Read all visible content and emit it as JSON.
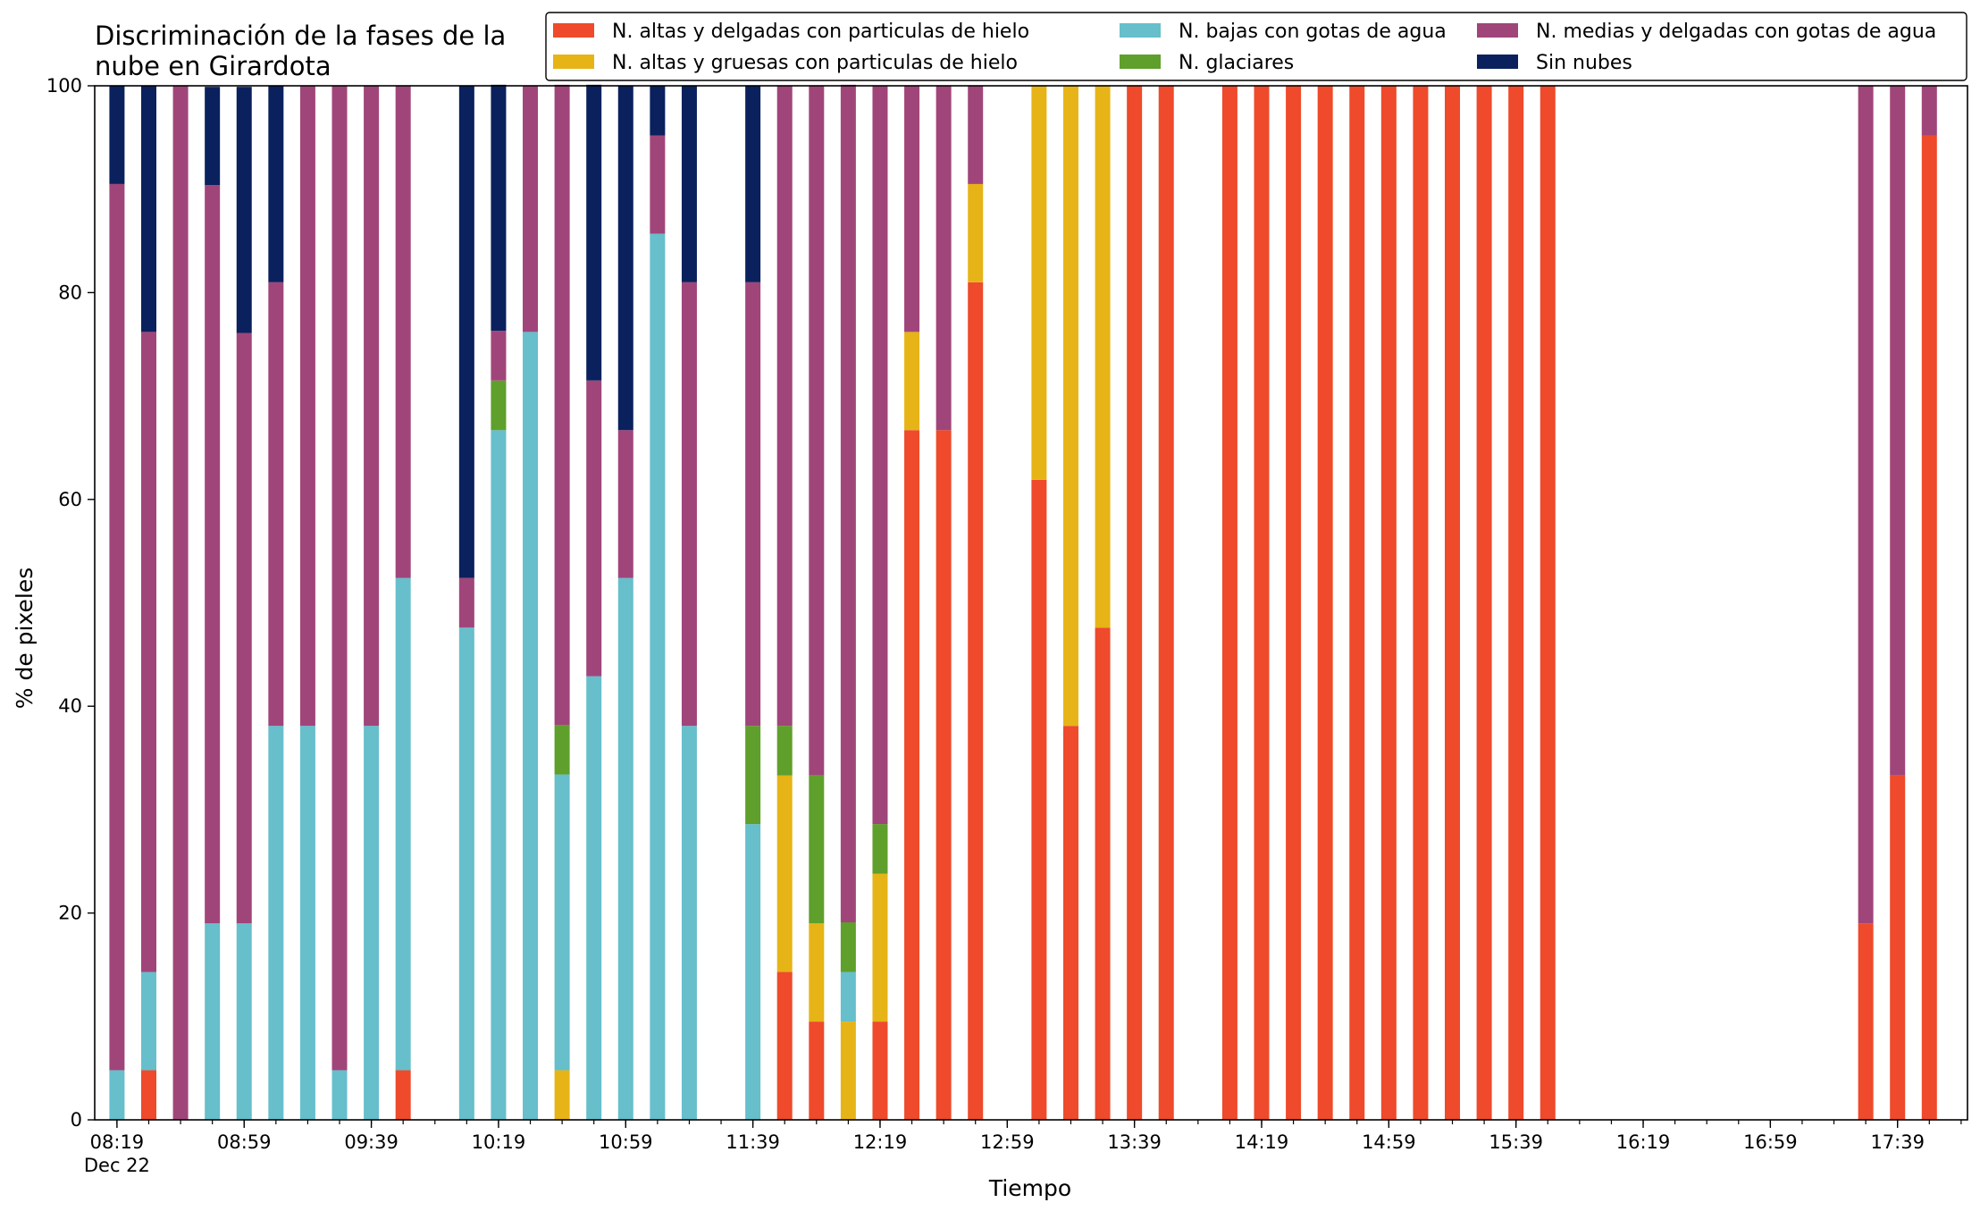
{
  "chart_data": {
    "type": "bar",
    "stacked": true,
    "title": [
      "Discriminación de la fases de la",
      "nube en Girardota"
    ],
    "xlabel": "Tiempo",
    "ylabel": "% de pixeles",
    "ylim": [
      0,
      100
    ],
    "yticks": [
      0,
      20,
      40,
      60,
      80,
      100
    ],
    "xlim_minutes_from_0819": [
      -7,
      582
    ],
    "xtick_labels": [
      {
        "label": "08:19",
        "sublabel": "Dec 22",
        "minutes": 0
      },
      {
        "label": "08:59",
        "minutes": 40
      },
      {
        "label": "09:39",
        "minutes": 80
      },
      {
        "label": "10:19",
        "minutes": 120
      },
      {
        "label": "10:59",
        "minutes": 160
      },
      {
        "label": "11:39",
        "minutes": 200
      },
      {
        "label": "12:19",
        "minutes": 240
      },
      {
        "label": "12:59",
        "minutes": 280
      },
      {
        "label": "13:39",
        "minutes": 320
      },
      {
        "label": "14:19",
        "minutes": 360
      },
      {
        "label": "14:59",
        "minutes": 400
      },
      {
        "label": "15:39",
        "minutes": 440
      },
      {
        "label": "16:19",
        "minutes": 480
      },
      {
        "label": "16:59",
        "minutes": 520
      },
      {
        "label": "17:39",
        "minutes": 560
      }
    ],
    "minor_tick_step_minutes": 10,
    "grid": false,
    "legend_placement": "top-right",
    "legend_columns": 3,
    "series": [
      {
        "name": "N. altas y delgadas con particulas de hielo",
        "color": "#ee4a2b"
      },
      {
        "name": "N. altas y gruesas con particulas de hielo",
        "color": "#e6b417"
      },
      {
        "name": "N. bajas con gotas de agua",
        "color": "#66bfcb"
      },
      {
        "name": "N. glaciares",
        "color": "#5f9f2b"
      },
      {
        "name": "N. medias y delgadas con gotas de agua",
        "color": "#a0457a"
      },
      {
        "name": "Sin nubes",
        "color": "#0a215e"
      }
    ],
    "bars": [
      {
        "time": "08:19",
        "values": [
          0,
          0,
          4.8,
          0,
          85.7,
          9.5
        ]
      },
      {
        "time": "08:29",
        "values": [
          4.8,
          0,
          9.5,
          0,
          61.9,
          23.8
        ]
      },
      {
        "time": "08:39",
        "values": [
          0,
          0,
          0,
          0,
          100,
          0
        ]
      },
      {
        "time": "08:49",
        "values": [
          0,
          0,
          19.0,
          0,
          71.4,
          9.5
        ]
      },
      {
        "time": "08:59",
        "values": [
          0,
          0,
          19.0,
          0,
          57.1,
          23.8
        ]
      },
      {
        "time": "09:09",
        "values": [
          0,
          0,
          38.1,
          0,
          42.9,
          19.0
        ]
      },
      {
        "time": "09:19",
        "values": [
          0,
          0,
          38.1,
          0,
          61.9,
          0
        ]
      },
      {
        "time": "09:29",
        "values": [
          0,
          0,
          4.8,
          0,
          95.2,
          0
        ]
      },
      {
        "time": "09:39",
        "values": [
          0,
          0,
          38.1,
          0,
          61.9,
          0
        ]
      },
      {
        "time": "09:49",
        "values": [
          4.8,
          0,
          47.6,
          0,
          47.6,
          0
        ]
      },
      {
        "time": "10:09",
        "values": [
          0,
          0,
          47.6,
          0,
          4.8,
          47.6
        ]
      },
      {
        "time": "10:19",
        "values": [
          0,
          0,
          66.7,
          4.8,
          4.8,
          23.8
        ]
      },
      {
        "time": "10:29",
        "values": [
          0,
          0,
          76.2,
          0,
          23.8,
          0
        ]
      },
      {
        "time": "10:39",
        "values": [
          0,
          4.8,
          28.6,
          4.8,
          61.9,
          0
        ]
      },
      {
        "time": "10:49",
        "values": [
          0,
          0,
          42.9,
          0,
          28.6,
          28.6
        ]
      },
      {
        "time": "10:59",
        "values": [
          0,
          0,
          52.4,
          0,
          14.3,
          33.3
        ]
      },
      {
        "time": "11:09",
        "values": [
          0,
          0,
          85.7,
          0,
          9.5,
          4.8
        ]
      },
      {
        "time": "11:19",
        "values": [
          0,
          0,
          38.1,
          0,
          42.9,
          19.0
        ]
      },
      {
        "time": "11:39",
        "values": [
          0,
          0,
          28.6,
          9.5,
          42.9,
          19.0
        ]
      },
      {
        "time": "11:49",
        "values": [
          14.3,
          19.0,
          0,
          4.8,
          61.9,
          0
        ]
      },
      {
        "time": "11:59",
        "values": [
          9.5,
          9.5,
          0,
          14.3,
          66.7,
          0
        ]
      },
      {
        "time": "12:09",
        "values": [
          0,
          9.5,
          4.8,
          4.8,
          81.0,
          0
        ]
      },
      {
        "time": "12:19",
        "values": [
          9.5,
          14.3,
          0,
          4.8,
          71.4,
          0
        ]
      },
      {
        "time": "12:29",
        "values": [
          66.7,
          9.5,
          0,
          0,
          23.8,
          0
        ]
      },
      {
        "time": "12:39",
        "values": [
          66.7,
          0,
          0,
          0,
          33.3,
          0
        ]
      },
      {
        "time": "12:49",
        "values": [
          81.0,
          9.5,
          0,
          0,
          9.5,
          0
        ]
      },
      {
        "time": "13:09",
        "values": [
          61.9,
          38.1,
          0,
          0,
          0,
          0
        ]
      },
      {
        "time": "13:19",
        "values": [
          38.1,
          61.9,
          0,
          0,
          0,
          0
        ]
      },
      {
        "time": "13:29",
        "values": [
          47.6,
          52.4,
          0,
          0,
          0,
          0
        ]
      },
      {
        "time": "13:39",
        "values": [
          100,
          0,
          0,
          0,
          0,
          0
        ]
      },
      {
        "time": "13:49",
        "values": [
          100,
          0,
          0,
          0,
          0,
          0
        ]
      },
      {
        "time": "14:09",
        "values": [
          100,
          0,
          0,
          0,
          0,
          0
        ]
      },
      {
        "time": "14:19",
        "values": [
          100,
          0,
          0,
          0,
          0,
          0
        ]
      },
      {
        "time": "14:29",
        "values": [
          100,
          0,
          0,
          0,
          0,
          0
        ]
      },
      {
        "time": "14:39",
        "values": [
          100,
          0,
          0,
          0,
          0,
          0
        ]
      },
      {
        "time": "14:49",
        "values": [
          100,
          0,
          0,
          0,
          0,
          0
        ]
      },
      {
        "time": "14:59",
        "values": [
          100,
          0,
          0,
          0,
          0,
          0
        ]
      },
      {
        "time": "15:09",
        "values": [
          100,
          0,
          0,
          0,
          0,
          0
        ]
      },
      {
        "time": "15:19",
        "values": [
          100,
          0,
          0,
          0,
          0,
          0
        ]
      },
      {
        "time": "15:29",
        "values": [
          100,
          0,
          0,
          0,
          0,
          0
        ]
      },
      {
        "time": "15:39",
        "values": [
          100,
          0,
          0,
          0,
          0,
          0
        ]
      },
      {
        "time": "15:49",
        "values": [
          100,
          0,
          0,
          0,
          0,
          0
        ]
      },
      {
        "time": "17:29",
        "values": [
          19.0,
          0,
          0,
          0,
          81.0,
          0
        ]
      },
      {
        "time": "17:39",
        "values": [
          33.3,
          0,
          0,
          0,
          66.7,
          0
        ]
      },
      {
        "time": "17:49",
        "values": [
          95.2,
          0,
          0,
          0,
          4.8,
          0
        ]
      }
    ]
  }
}
